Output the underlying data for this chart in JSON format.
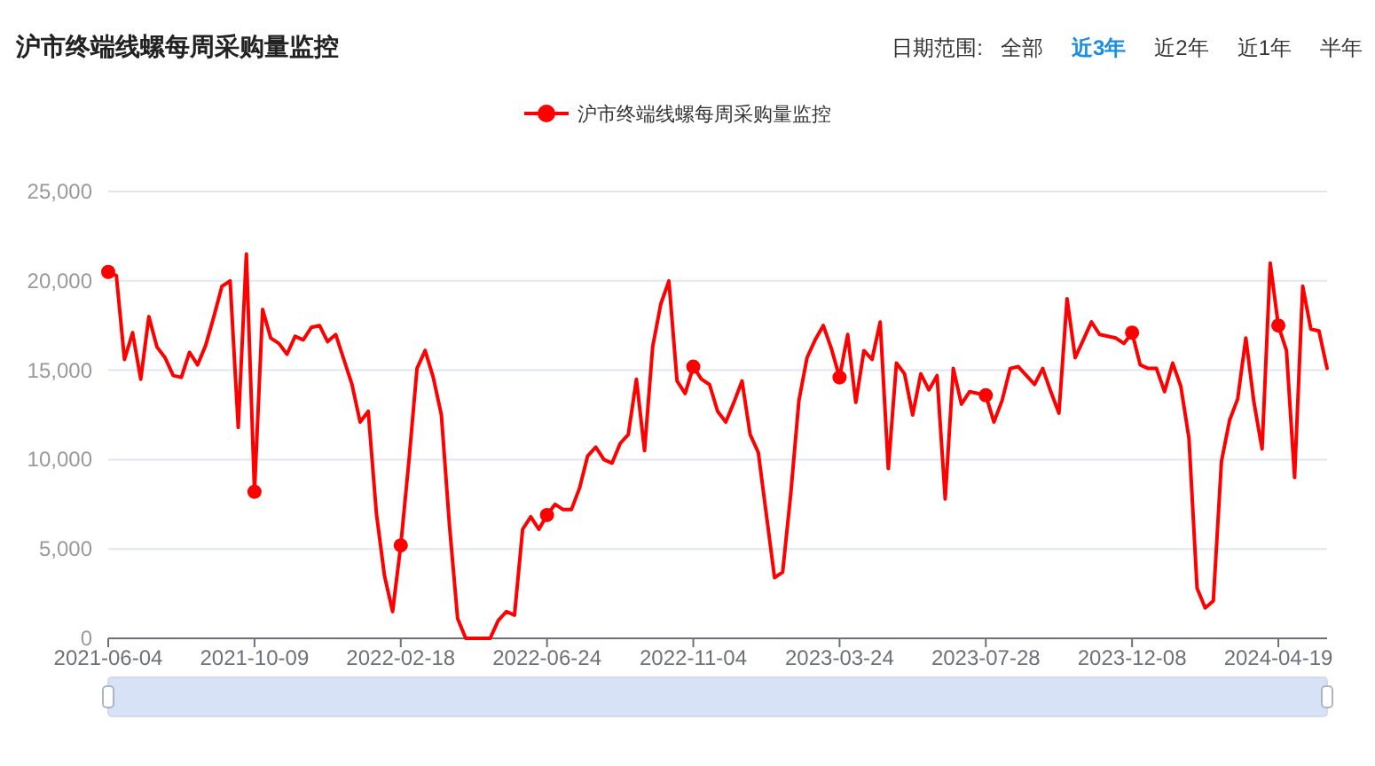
{
  "chart_data": {
    "type": "line",
    "title": "沪市终端线螺每周采购量监控",
    "annotations": [
      "日期范围:",
      "全部",
      "近3年",
      "近2年",
      "近1年",
      "半年"
    ],
    "categories": [
      "2021-06-04",
      null,
      null,
      null,
      null,
      null,
      null,
      null,
      null,
      null,
      null,
      null,
      null,
      null,
      null,
      null,
      null,
      null,
      "2021-10-09",
      null,
      null,
      null,
      null,
      null,
      null,
      null,
      null,
      null,
      null,
      null,
      null,
      null,
      null,
      null,
      null,
      null,
      "2022-02-18",
      null,
      null,
      null,
      null,
      null,
      null,
      null,
      null,
      null,
      null,
      null,
      null,
      null,
      null,
      null,
      null,
      null,
      "2022-06-24",
      null,
      null,
      null,
      null,
      null,
      null,
      null,
      null,
      null,
      null,
      null,
      null,
      null,
      null,
      null,
      null,
      null,
      "2022-11-04",
      null,
      null,
      null,
      null,
      null,
      null,
      null,
      null,
      null,
      null,
      null,
      null,
      null,
      null,
      null,
      null,
      null,
      "2023-03-24",
      null,
      null,
      null,
      null,
      null,
      null,
      null,
      null,
      null,
      null,
      null,
      null,
      null,
      null,
      null,
      null,
      null,
      "2023-07-28",
      null,
      null,
      null,
      null,
      null,
      null,
      null,
      null,
      null,
      null,
      null,
      null,
      null,
      null,
      null,
      null,
      null,
      "2023-12-08",
      null,
      null,
      null,
      null,
      null,
      null,
      null,
      null,
      null,
      null,
      null,
      null,
      null,
      null,
      null,
      null,
      null,
      "2024-04-19",
      null,
      null,
      null,
      null,
      null,
      null
    ],
    "series": [
      {
        "name": "沪市终端线螺每周采购量监控",
        "color": "#ff0000",
        "values": [
          20500,
          20300,
          15600,
          17100,
          14500,
          18000,
          16300,
          15700,
          14700,
          14600,
          16000,
          15300,
          16400,
          18000,
          19700,
          20000,
          11800,
          21500,
          8200,
          18400,
          16800,
          16500,
          15900,
          16900,
          16700,
          17400,
          17500,
          16600,
          17000,
          15600,
          14200,
          12100,
          12700,
          7000,
          3500,
          1500,
          5200,
          9900,
          15100,
          16100,
          14600,
          12500,
          6300,
          1100,
          0,
          0,
          0,
          0,
          1000,
          1500,
          1300,
          6100,
          6800,
          6100,
          6900,
          7500,
          7200,
          7200,
          8400,
          10200,
          10700,
          10000,
          9800,
          10900,
          11400,
          14500,
          10500,
          16300,
          18700,
          20000,
          14400,
          13700,
          15200,
          14500,
          14200,
          12700,
          12100,
          13200,
          14400,
          11400,
          10400,
          6900,
          3400,
          3700,
          8100,
          13300,
          15700,
          16700,
          17500,
          16200,
          14600,
          17000,
          13200,
          16100,
          15600,
          17700,
          9500,
          15400,
          14800,
          12500,
          14800,
          13900,
          14700,
          7800,
          15100,
          13100,
          13800,
          13700,
          13600,
          12100,
          13300,
          15100,
          15200,
          14700,
          14200,
          15100,
          13800,
          12600,
          19000,
          15700,
          16700,
          17700,
          17000,
          16900,
          16800,
          16500,
          17100,
          15300,
          15100,
          15100,
          13800,
          15400,
          14100,
          11200,
          2800,
          1700,
          2100,
          9900,
          12200,
          13400,
          16800,
          13200,
          10600,
          21000,
          17500,
          16100,
          9000,
          19700,
          17300,
          17200,
          15100
        ]
      }
    ],
    "ylim": [
      0,
      25000
    ],
    "yticks": [
      0,
      {
        "value": 5000,
        "label": "5,000"
      },
      {
        "value": 10000,
        "label": "10,000"
      },
      {
        "value": 15000,
        "label": "15,000"
      },
      {
        "value": 20000,
        "label": "20,000"
      },
      {
        "value": 25000,
        "label": "25,000"
      }
    ],
    "grid": "y",
    "legend": "top",
    "line_style": "solid"
  }
}
